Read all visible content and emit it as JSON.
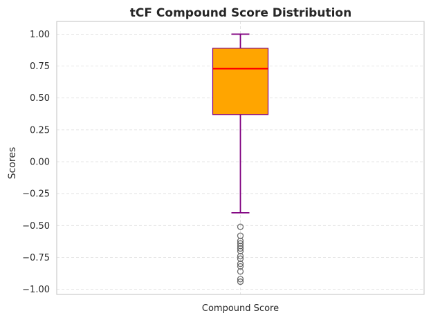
{
  "chart_data": {
    "type": "box",
    "title": "tCF Compound Score Distribution",
    "xlabel": "",
    "ylabel": "Scores",
    "categories": [
      "Compound Score"
    ],
    "ylim": [
      -1.04,
      1.1
    ],
    "yticks": [
      1.0,
      0.75,
      0.5,
      0.25,
      0.0,
      -0.25,
      -0.5,
      -0.75,
      -1.0
    ],
    "ytick_labels": [
      "1.00",
      "0.75",
      "0.50",
      "0.25",
      "0.00",
      "−0.25",
      "−0.50",
      "−0.75",
      "−1.00"
    ],
    "grid": "y, dashed",
    "box": {
      "whisker_low": -0.4,
      "q1": 0.37,
      "median": 0.73,
      "q3": 0.89,
      "whisker_high": 1.0,
      "outliers": [
        -0.51,
        -0.58,
        -0.62,
        -0.64,
        -0.66,
        -0.68,
        -0.7,
        -0.74,
        -0.76,
        -0.8,
        -0.82,
        -0.86,
        -0.92,
        -0.94
      ]
    },
    "colors": {
      "box_fill": "#FFA500",
      "box_edge": "#800080",
      "median": "#FF0000",
      "whisker": "#800080",
      "outlier": "#555555",
      "grid": "#dddddd",
      "frame": "#cccccc"
    }
  }
}
